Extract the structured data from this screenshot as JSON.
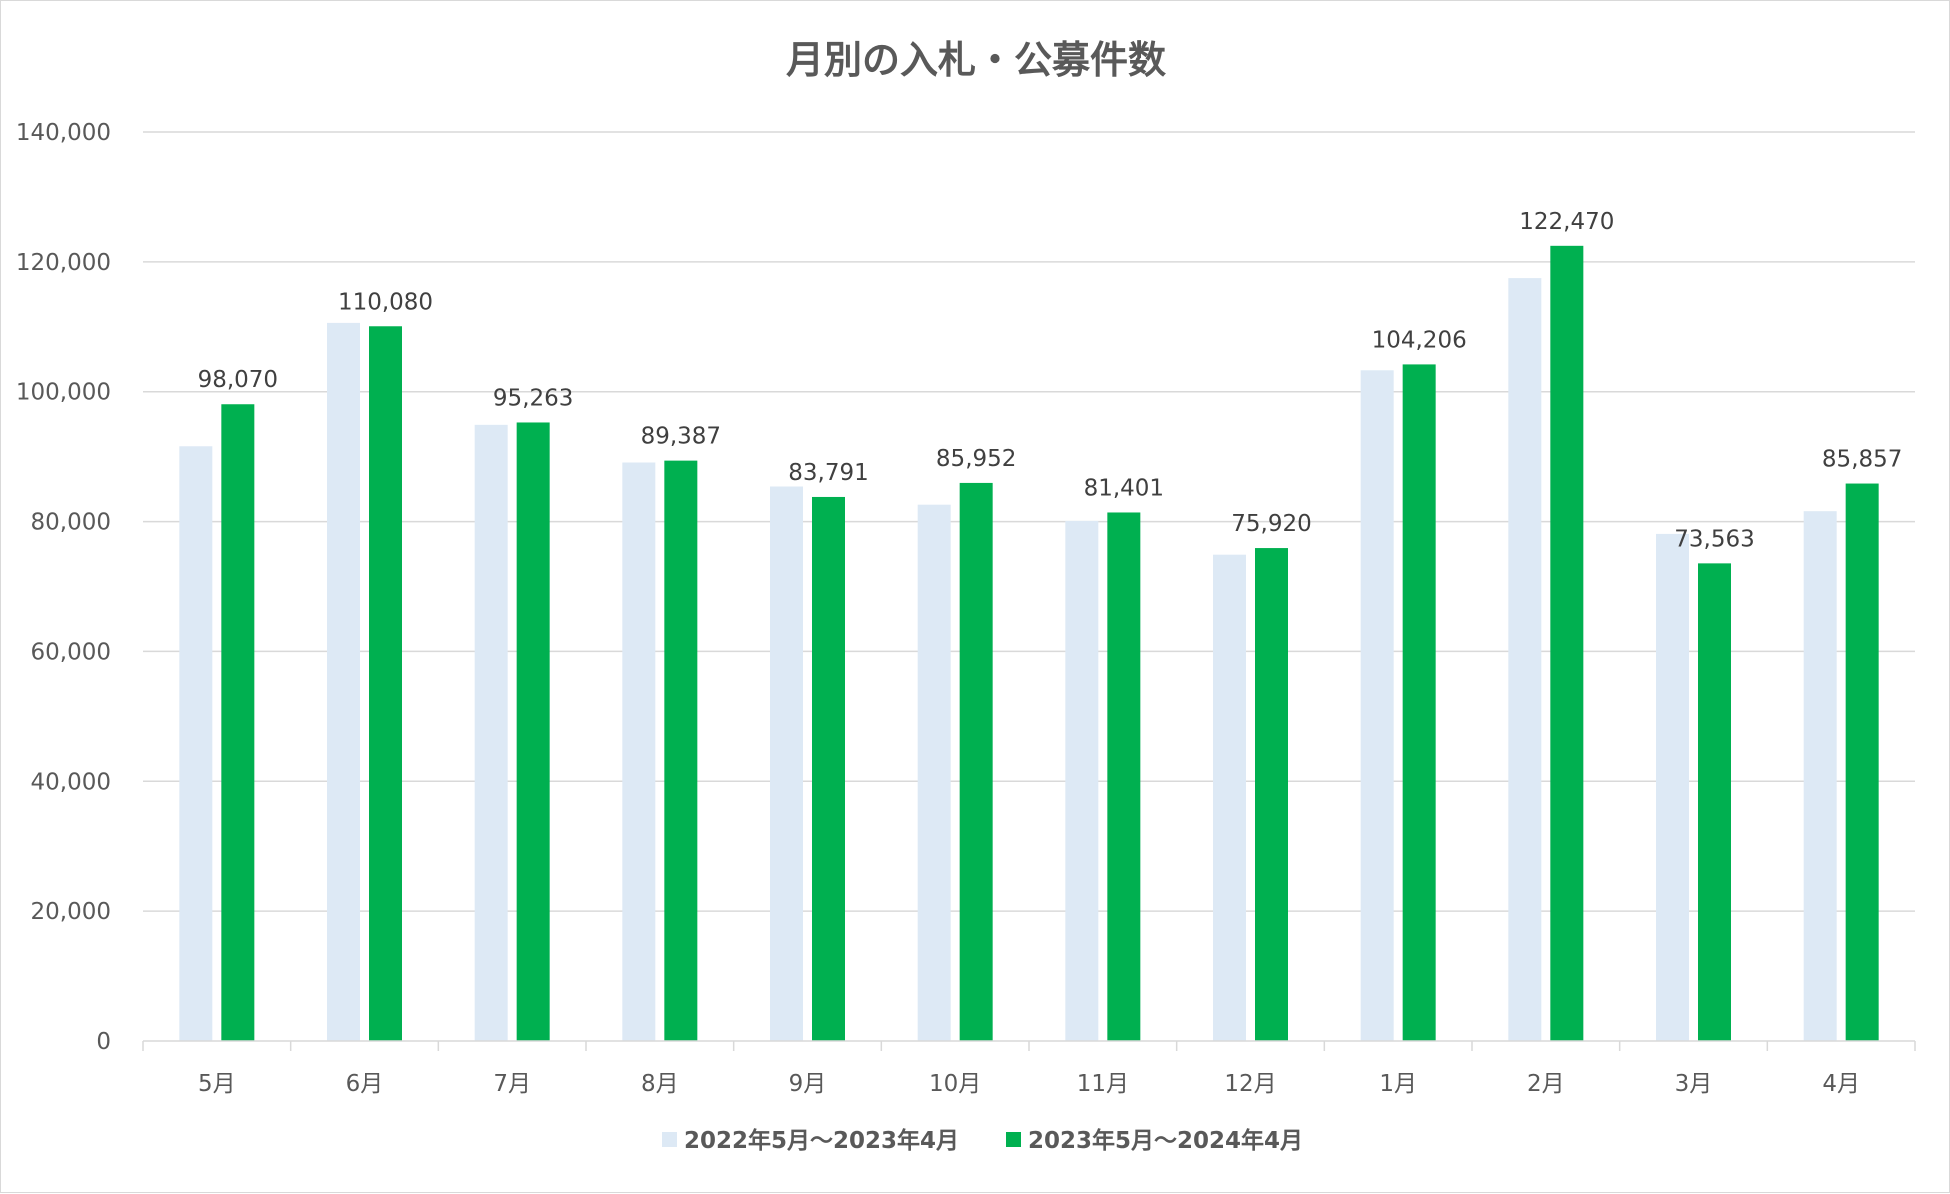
{
  "chart_data": {
    "type": "bar",
    "title": "月別の入札・公募件数",
    "xlabel": "",
    "ylabel": "",
    "ylim": [
      0,
      140000
    ],
    "yticks": [
      0,
      20000,
      40000,
      60000,
      80000,
      100000,
      120000,
      140000
    ],
    "ytick_labels": [
      "0",
      "20,000",
      "40,000",
      "60,000",
      "80,000",
      "100,000",
      "120,000",
      "140,000"
    ],
    "grid": true,
    "legend_position": "bottom",
    "categories": [
      "5月",
      "6月",
      "7月",
      "8月",
      "9月",
      "10月",
      "11月",
      "12月",
      "1月",
      "2月",
      "3月",
      "4月"
    ],
    "series": [
      {
        "name": "2022年5月～2023年4月",
        "color": "#dde9f5",
        "values": [
          91600,
          110600,
          94900,
          89100,
          85400,
          82600,
          80100,
          74900,
          103300,
          117500,
          78100,
          81600
        ]
      },
      {
        "name": "2023年5月～2024年4月",
        "color": "#00b050",
        "values": [
          98070,
          110080,
          95263,
          89387,
          83791,
          85952,
          81401,
          75920,
          104206,
          122470,
          73563,
          85857
        ],
        "data_labels": [
          "98,070",
          "110,080",
          "95,263",
          "89,387",
          "83,791",
          "85,952",
          "81,401",
          "75,920",
          "104,206",
          "122,470",
          "73,563",
          "85,857"
        ]
      }
    ],
    "colors": {
      "gridline": "#d9d9d9",
      "axis_text": "#595959",
      "label_text": "#404040"
    }
  }
}
